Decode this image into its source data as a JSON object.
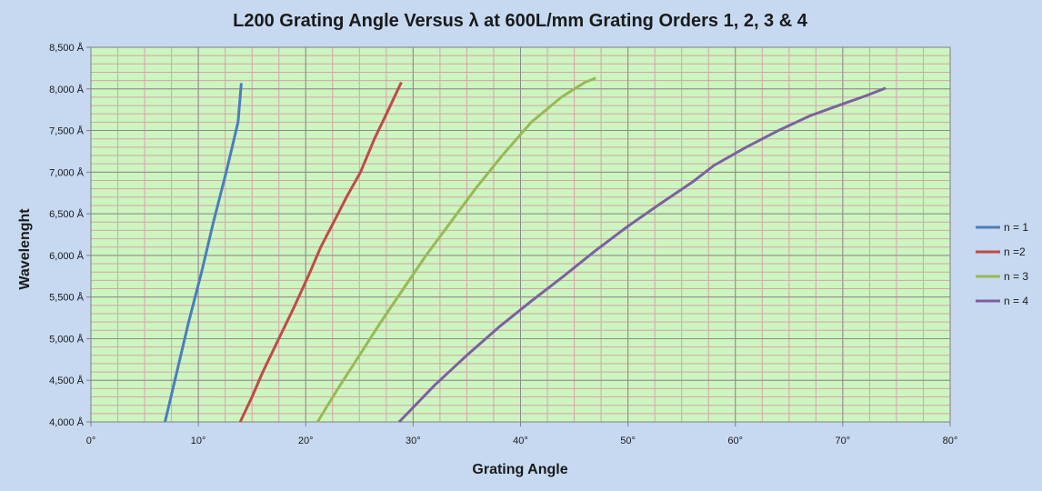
{
  "chart_data": {
    "type": "line",
    "title": "L200 Grating Angle Versus λ at 600L/mm Grating Orders 1, 2, 3 & 4",
    "xlabel": "Grating Angle",
    "ylabel": "Wavelenght",
    "xlim": [
      0,
      80
    ],
    "ylim": [
      4000,
      8500
    ],
    "x_ticks": [
      0,
      10,
      20,
      30,
      40,
      50,
      60,
      70,
      80
    ],
    "x_tick_labels": [
      "0°",
      "10°",
      "20°",
      "30°",
      "40°",
      "50°",
      "60°",
      "70°",
      "80°"
    ],
    "y_ticks": [
      4000,
      4500,
      5000,
      5500,
      6000,
      6500,
      7000,
      7500,
      8000,
      8500
    ],
    "y_tick_labels": [
      "4,000 Å",
      "4,500 Å",
      "5,000 Å",
      "5,500 Å",
      "6,000 Å",
      "6,500 Å",
      "7,000 Å",
      "7,500 Å",
      "8,000 Å",
      "8,500 Å"
    ],
    "grid": true,
    "legend_position": "right",
    "plot_background": "#ccf5c0",
    "series": [
      {
        "name": "n = 1",
        "color": "#4a7ebb",
        "points": [
          [
            6.9,
            4000
          ],
          [
            8.0,
            4600
          ],
          [
            9.1,
            5200
          ],
          [
            10.3,
            5800
          ],
          [
            11.4,
            6400
          ],
          [
            12.6,
            7000
          ],
          [
            13.7,
            7600
          ],
          [
            14.0,
            8070
          ]
        ]
      },
      {
        "name": "n =2",
        "color": "#be4b48",
        "points": [
          [
            13.9,
            4000
          ],
          [
            15.0,
            4300
          ],
          [
            16.0,
            4600
          ],
          [
            17.5,
            5000
          ],
          [
            19.0,
            5400
          ],
          [
            20.4,
            5800
          ],
          [
            21.4,
            6100
          ],
          [
            22.6,
            6400
          ],
          [
            23.8,
            6700
          ],
          [
            25.1,
            7000
          ],
          [
            26.4,
            7400
          ],
          [
            27.7,
            7750
          ],
          [
            28.9,
            8080
          ]
        ]
      },
      {
        "name": "n = 3",
        "color": "#98b954",
        "points": [
          [
            21.1,
            4000
          ],
          [
            23.0,
            4400
          ],
          [
            25.0,
            4800
          ],
          [
            27.0,
            5200
          ],
          [
            29.1,
            5600
          ],
          [
            31.2,
            6000
          ],
          [
            33.5,
            6400
          ],
          [
            35.8,
            6800
          ],
          [
            38.3,
            7200
          ],
          [
            41.0,
            7600
          ],
          [
            43.8,
            7900
          ],
          [
            46.0,
            8080
          ],
          [
            47.0,
            8130
          ]
        ]
      },
      {
        "name": "n = 4",
        "color": "#7d60a0",
        "points": [
          [
            28.7,
            4000
          ],
          [
            32.0,
            4440
          ],
          [
            35.0,
            4800
          ],
          [
            38.0,
            5140
          ],
          [
            41.0,
            5450
          ],
          [
            44.0,
            5750
          ],
          [
            47.0,
            6060
          ],
          [
            50.0,
            6350
          ],
          [
            53.0,
            6620
          ],
          [
            56.0,
            6880
          ],
          [
            58.0,
            7080
          ],
          [
            61.0,
            7300
          ],
          [
            64.0,
            7500
          ],
          [
            67.0,
            7680
          ],
          [
            70.0,
            7820
          ],
          [
            72.0,
            7910
          ],
          [
            74.0,
            8010
          ]
        ]
      }
    ]
  }
}
